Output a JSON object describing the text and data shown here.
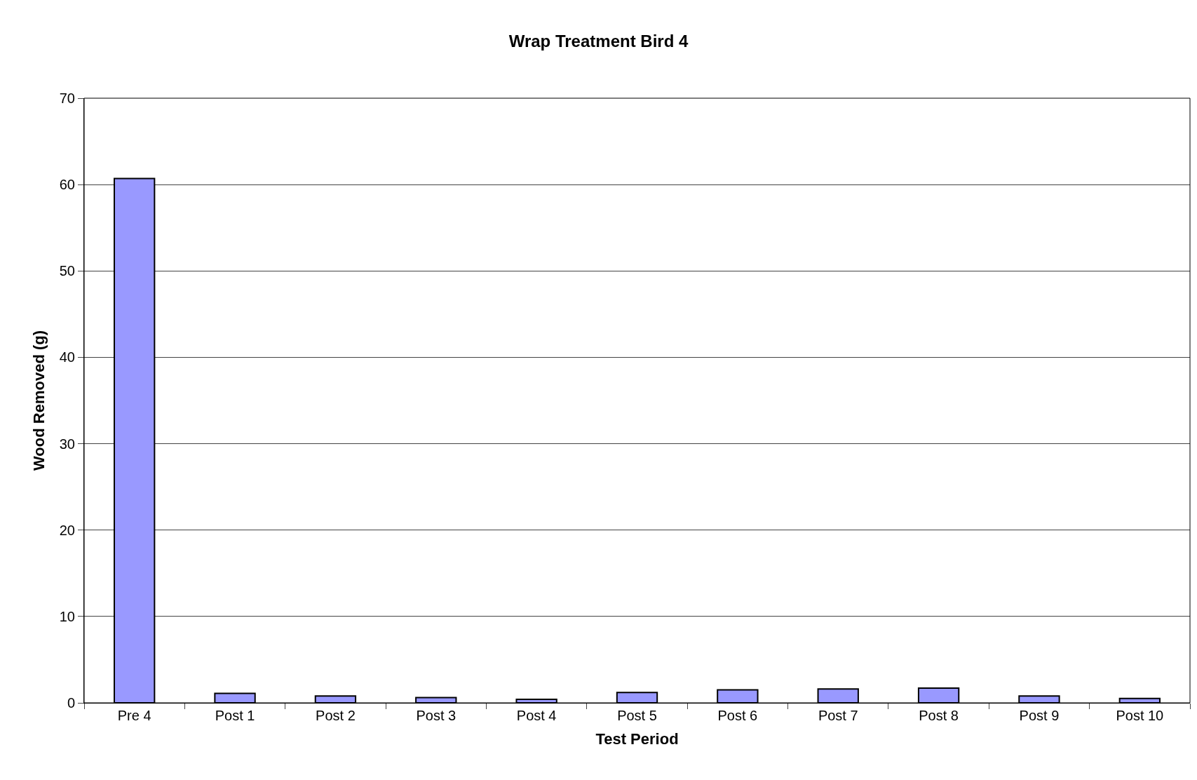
{
  "chart_data": {
    "type": "bar",
    "title": "Wrap Treatment Bird 4",
    "xlabel": "Test Period",
    "ylabel": "Wood Removed (g)",
    "categories": [
      "Pre 4",
      "Post 1",
      "Post 2",
      "Post 3",
      "Post 4",
      "Post 5",
      "Post 6",
      "Post 7",
      "Post 8",
      "Post 9",
      "Post 10"
    ],
    "values": [
      60.7,
      1.1,
      0.8,
      0.6,
      0.4,
      1.2,
      1.5,
      1.6,
      1.7,
      0.8,
      0.5
    ],
    "color": "#9999ff",
    "ylim": [
      0,
      70
    ],
    "yticks": [
      0,
      10,
      20,
      30,
      40,
      50,
      60,
      70
    ],
    "grid": "y"
  }
}
